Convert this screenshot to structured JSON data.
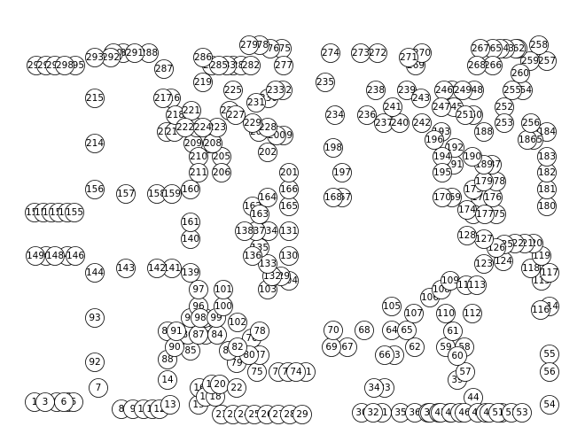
{
  "node_labels": [
    "1",
    "2",
    "3",
    "4",
    "5",
    "6",
    "7",
    "8",
    "9",
    "10",
    "11",
    "12",
    "13",
    "14",
    "15",
    "16",
    "17",
    "18",
    "19",
    "20",
    "21",
    "22",
    "23",
    "24",
    "25",
    "26",
    "27",
    "28",
    "29",
    "30",
    "31",
    "32",
    "33",
    "34",
    "35",
    "36",
    "37",
    "38",
    "39",
    "40",
    "41",
    "42",
    "43",
    "44",
    "45",
    "46",
    "47",
    "48",
    "49",
    "50",
    "51",
    "52",
    "53",
    "54",
    "55",
    "56",
    "57",
    "58",
    "59",
    "60",
    "61",
    "62",
    "63",
    "64",
    "65",
    "66",
    "67",
    "68",
    "69",
    "70",
    "71",
    "72",
    "73",
    "74",
    "75",
    "76",
    "77",
    "78",
    "79",
    "80",
    "81",
    "82",
    "83",
    "84",
    "85",
    "86",
    "87",
    "88",
    "89",
    "90",
    "91",
    "92",
    "93",
    "94",
    "95",
    "96",
    "97",
    "98",
    "99",
    "100",
    "101",
    "102",
    "103",
    "104",
    "105",
    "106",
    "107",
    "108",
    "109",
    "110",
    "111",
    "112",
    "113",
    "114",
    "115",
    "116",
    "117",
    "118",
    "119",
    "120",
    "121",
    "122",
    "123",
    "124",
    "125",
    "126",
    "127",
    "128",
    "129",
    "130",
    "131",
    "132",
    "133",
    "134",
    "135",
    "136",
    "137",
    "138",
    "139",
    "140",
    "141",
    "142",
    "143",
    "144",
    "145",
    "146",
    "147",
    "148",
    "149",
    "150",
    "151",
    "152",
    "153",
    "154",
    "155",
    "156",
    "157",
    "158",
    "159",
    "160",
    "161",
    "162",
    "163",
    "164",
    "165",
    "166",
    "167",
    "168",
    "169",
    "170",
    "171",
    "172",
    "173",
    "174",
    "175",
    "176",
    "177",
    "178",
    "179",
    "180",
    "181",
    "182",
    "183",
    "184",
    "185",
    "186",
    "187",
    "188",
    "189",
    "190",
    "191",
    "192",
    "193",
    "194",
    "195",
    "196",
    "197",
    "198",
    "199",
    "200",
    "201",
    "202",
    "203",
    "204",
    "205",
    "206",
    "207",
    "208",
    "209",
    "210",
    "211",
    "212",
    "213",
    "214",
    "215",
    "216",
    "217",
    "218",
    "219",
    "220",
    "221",
    "222",
    "223",
    "224",
    "225",
    "226",
    "227",
    "228",
    "229",
    "230",
    "231",
    "232",
    "233",
    "234",
    "235",
    "236",
    "237",
    "238",
    "239",
    "240",
    "241",
    "242",
    "243",
    "244",
    "245",
    "246",
    "247",
    "248",
    "249",
    "250",
    "251",
    "252",
    "253",
    "254",
    "255",
    "256",
    "257",
    "258",
    "259",
    "260",
    "261",
    "262",
    "263",
    "264",
    "265",
    "266",
    "267",
    "268",
    "269",
    "270",
    "271",
    "272",
    "273",
    "274",
    "275",
    "276",
    "277",
    "278",
    "279",
    "280",
    "281",
    "282",
    "283",
    "284",
    "285",
    "286",
    "287",
    "288",
    "289",
    "290",
    "291",
    "292",
    "293",
    "294",
    "295",
    "296",
    "297",
    "298"
  ]
}
